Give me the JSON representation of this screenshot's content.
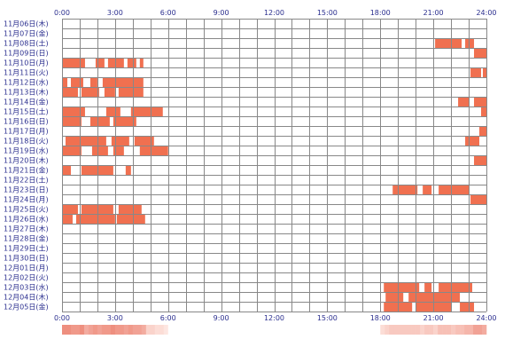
{
  "chart_data": {
    "type": "heatmap",
    "title": "",
    "xlabel": "",
    "ylabel": "",
    "x_hours": [
      "0:00",
      "3:00",
      "6:00",
      "9:00",
      "12:00",
      "15:00",
      "18:00",
      "21:00",
      "24:00"
    ],
    "days": [
      "11月06日(木)",
      "11月07日(金)",
      "11月08日(土)",
      "11月09日(日)",
      "11月10日(月)",
      "11月11日(火)",
      "11月12日(水)",
      "11月13日(木)",
      "11月14日(金)",
      "11月15日(土)",
      "11月16日(日)",
      "11月17日(月)",
      "11月18日(火)",
      "11月19日(水)",
      "11月20日(木)",
      "11月21日(金)",
      "11月22日(土)",
      "11月23日(日)",
      "11月24日(月)",
      "11月25日(火)",
      "11月26日(水)",
      "11月27日(木)",
      "11月28日(金)",
      "11月29日(土)",
      "11月30日(日)",
      "12月01日(月)",
      "12月02日(火)",
      "12月03日(水)",
      "12月04日(木)",
      "12月05日(金)"
    ],
    "xlim": [
      0,
      24
    ],
    "activity_hours": [
      [],
      [],
      [
        [
          21.1,
          22.6
        ],
        [
          22.8,
          23.3
        ]
      ],
      [
        [
          23.3,
          24.0
        ]
      ],
      [
        [
          0.0,
          1.3
        ],
        [
          1.9,
          2.4
        ],
        [
          2.6,
          3.5
        ],
        [
          3.7,
          4.2
        ],
        [
          4.4,
          4.6
        ]
      ],
      [
        [
          23.1,
          23.7
        ],
        [
          23.8,
          24.0
        ]
      ],
      [
        [
          0.0,
          0.3
        ],
        [
          0.5,
          1.2
        ],
        [
          1.6,
          2.0
        ],
        [
          2.3,
          4.6
        ]
      ],
      [
        [
          0.0,
          0.9
        ],
        [
          1.1,
          2.1
        ],
        [
          2.4,
          3.0
        ],
        [
          3.2,
          4.6
        ]
      ],
      [
        [
          22.4,
          23.0
        ],
        [
          23.3,
          24.0
        ]
      ],
      [
        [
          0.0,
          1.3
        ],
        [
          2.5,
          3.3
        ],
        [
          3.9,
          5.7
        ],
        [
          23.7,
          24.0
        ]
      ],
      [
        [
          0.0,
          1.1
        ],
        [
          1.6,
          2.7
        ],
        [
          2.9,
          4.2
        ]
      ],
      [
        [
          23.6,
          24.0
        ]
      ],
      [
        [
          0.2,
          2.5
        ],
        [
          2.8,
          3.8
        ],
        [
          4.1,
          5.2
        ],
        [
          22.8,
          23.6
        ]
      ],
      [
        [
          0.0,
          1.1
        ],
        [
          1.7,
          2.6
        ],
        [
          2.9,
          3.5
        ],
        [
          4.4,
          6.0
        ]
      ],
      [
        [
          23.3,
          24.0
        ]
      ],
      [
        [
          0.0,
          0.5
        ],
        [
          1.1,
          2.9
        ],
        [
          3.6,
          3.9
        ]
      ],
      [],
      [
        [
          18.7,
          20.1
        ],
        [
          20.4,
          20.9
        ],
        [
          21.3,
          23.0
        ]
      ],
      [
        [
          23.1,
          24.0
        ]
      ],
      [
        [
          0.0,
          0.9
        ],
        [
          1.1,
          2.9
        ],
        [
          3.2,
          4.5
        ]
      ],
      [
        [
          0.0,
          0.6
        ],
        [
          0.8,
          3.0
        ],
        [
          3.1,
          4.7
        ]
      ],
      [],
      [],
      [],
      [],
      [],
      [],
      [
        [
          18.2,
          20.2
        ],
        [
          20.5,
          20.9
        ],
        [
          21.3,
          23.2
        ]
      ],
      [
        [
          18.3,
          19.3
        ],
        [
          19.6,
          22.5
        ]
      ],
      [
        [
          18.2,
          19.8
        ],
        [
          20.0,
          22.0
        ],
        [
          22.5,
          23.3
        ]
      ]
    ]
  },
  "colors": {
    "activity": "#f07050",
    "grid": "#888888",
    "labels": "#2b2f8f",
    "summary_low": "#fff0ec",
    "summary_high": "#ee8f7f"
  }
}
